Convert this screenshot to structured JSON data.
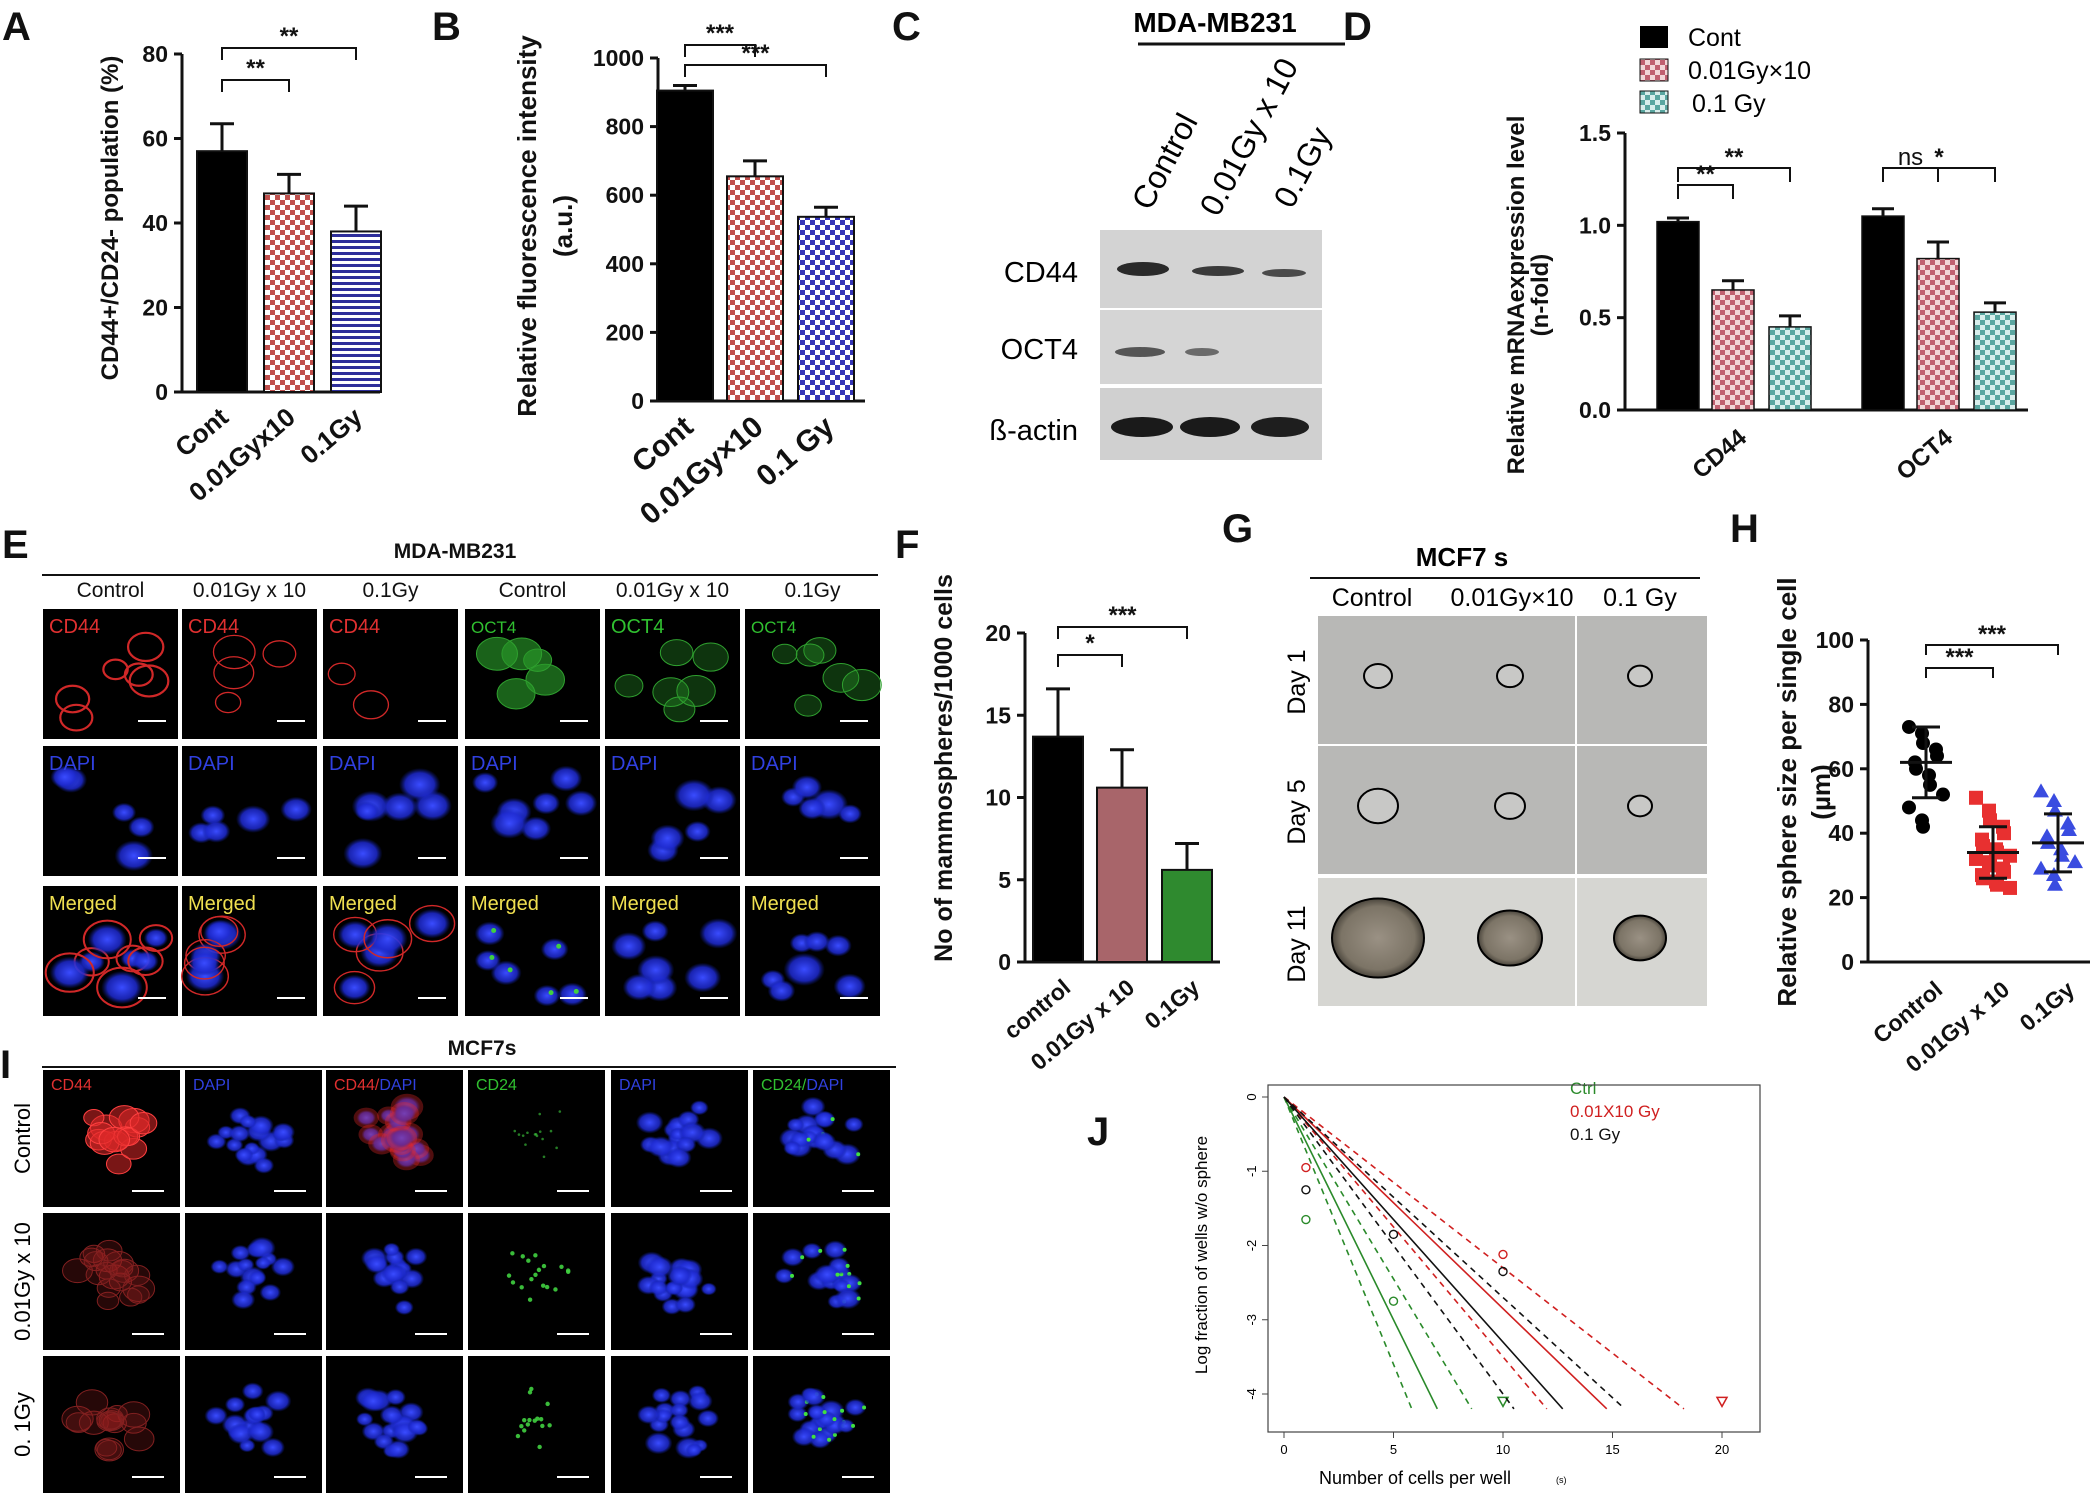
{
  "colors": {
    "black": "#000000",
    "red_check": "#c85a5a",
    "blue_stripe": "#3a3aa0",
    "pink_bar": "#a8656a",
    "green_bar": "#2f8a2f",
    "teal_check": "#5aa6a0",
    "micro_bg": "#000000",
    "red_channel": "#e03030",
    "blue_channel": "#2030d0",
    "green_channel": "#30c030",
    "merged_label": "#f0e050",
    "plate_bg": "#b9b9b9"
  },
  "panels": {
    "A": {
      "letter": "A"
    },
    "B": {
      "letter": "B"
    },
    "C": {
      "letter": "C"
    },
    "D": {
      "letter": "D"
    },
    "E": {
      "letter": "E"
    },
    "F": {
      "letter": "F"
    },
    "G": {
      "letter": "G"
    },
    "H": {
      "letter": "H"
    },
    "I": {
      "letter": "I"
    },
    "J": {
      "letter": "J"
    }
  },
  "panel_C": {
    "title": "MDA-MB231",
    "lanes": [
      "Control",
      "0.01Gy x 10",
      "0.1Gy"
    ],
    "rows": [
      "CD44",
      "OCT4",
      "ß-actin"
    ]
  },
  "panel_E": {
    "title": "MDA-MB231",
    "columns": [
      "Control",
      "0.01Gy x 10",
      "0.1Gy",
      "Control",
      "0.01Gy x 10",
      "0.1Gy"
    ],
    "row_labels": [
      [
        "CD44",
        "CD44",
        "CD44",
        "OCT4",
        "OCT4",
        "OCT4"
      ],
      [
        "DAPI",
        "DAPI",
        "DAPI",
        "DAPI",
        "DAPI",
        "DAPI"
      ],
      [
        "Merged",
        "Merged",
        "Merged",
        "Merged",
        "Merged",
        "Merged"
      ]
    ]
  },
  "panel_G": {
    "title": "MCF7 s",
    "columns": [
      "Control",
      "0.01Gy×10",
      "0.1 Gy"
    ],
    "rows": [
      "Day 1",
      "Day 5",
      "Day 11"
    ]
  },
  "panel_I": {
    "title": "MCF7s",
    "columns": [
      "CD44",
      "DAPI",
      "CD44/DAPI",
      "CD24",
      "DAPI",
      "CD24/DAPI"
    ],
    "rows": [
      "Control",
      "0.01Gy x 10",
      "0. 1Gy"
    ]
  },
  "chart_data": [
    {
      "id": "A",
      "type": "bar",
      "categories": [
        "Cont",
        "0.01Gyx10",
        "0.1Gy"
      ],
      "values": [
        57,
        47,
        38
      ],
      "errors": [
        6.5,
        4.5,
        6
      ],
      "ylabel": "CD44+/CD24- population (%)",
      "ylim": [
        0,
        80
      ],
      "yticks": [
        "0",
        "20",
        "40",
        "60",
        "80"
      ],
      "significance": [
        "**",
        "**"
      ]
    },
    {
      "id": "B",
      "type": "bar",
      "categories": [
        "Cont",
        "0.01Gy×10",
        "0.1 Gy"
      ],
      "values": [
        905,
        655,
        537
      ],
      "errors": [
        15,
        45,
        28
      ],
      "ylabel": "Relative fluorescence intensity",
      "ylabel2": "(a.u.)",
      "ylim": [
        0,
        1000
      ],
      "yticks": [
        "0",
        "200",
        "400",
        "600",
        "800",
        "1000"
      ],
      "significance": [
        "***",
        "***"
      ]
    },
    {
      "id": "D",
      "type": "bar",
      "categories": [
        "CD44",
        "OCT4"
      ],
      "series": [
        {
          "name": "Cont",
          "values": [
            1.02,
            1.05
          ],
          "errors": [
            0.02,
            0.04
          ]
        },
        {
          "name": "0.01Gy×10",
          "values": [
            0.65,
            0.82
          ],
          "errors": [
            0.05,
            0.09
          ]
        },
        {
          "name": "0.1 Gy",
          "values": [
            0.45,
            0.53
          ],
          "errors": [
            0.06,
            0.05
          ]
        }
      ],
      "ylabel": "Relative mRNAexpression level",
      "ylabel2": "(n-fold)",
      "ylim": [
        0,
        1.5
      ],
      "yticks": [
        "0.0",
        "0.5",
        "1.0",
        "1.5"
      ],
      "significance": [
        "**",
        "**",
        "ns",
        "*"
      ],
      "legend": "top-left"
    },
    {
      "id": "F",
      "type": "bar",
      "categories": [
        "control",
        "0.01Gy x 10",
        "0.1Gy"
      ],
      "values": [
        13.7,
        10.6,
        5.6
      ],
      "errors": [
        2.9,
        2.3,
        1.6
      ],
      "ylabel": "No of mammospheres/1000 cells",
      "ylim": [
        0,
        20
      ],
      "yticks": [
        "0",
        "5",
        "10",
        "15",
        "20"
      ],
      "significance": [
        "*",
        "***"
      ]
    },
    {
      "id": "H",
      "type": "scatter",
      "categories": [
        "Control",
        "0.01Gy x 10",
        "0.1Gy"
      ],
      "means": [
        62,
        34,
        37
      ],
      "sds": [
        11,
        8,
        9
      ],
      "points": [
        [
          73,
          71,
          68,
          66,
          64,
          62,
          60,
          58,
          55,
          52,
          48,
          44,
          42
        ],
        [
          51,
          47,
          44,
          42,
          40,
          38,
          36,
          35,
          34,
          33,
          32,
          31,
          30,
          29,
          28,
          27,
          26,
          25,
          24,
          23
        ],
        [
          53,
          50,
          47,
          43,
          41,
          39,
          37,
          35,
          33,
          31,
          29,
          27,
          24
        ]
      ],
      "ylabel": "Relative sphere size per single cell",
      "ylabel2": "(µm)",
      "ylim": [
        0,
        100
      ],
      "yticks": [
        "0",
        "20",
        "40",
        "60",
        "80",
        "100"
      ],
      "significance": [
        "***",
        "***"
      ]
    },
    {
      "id": "J",
      "type": "line",
      "xlabel": "Number of cells per well",
      "xlabel_suffix": "(s)",
      "ylabel": "Log fraction of wells w/o sphere",
      "xlim": [
        0,
        20
      ],
      "ylim": [
        -4.2,
        0.2
      ],
      "xticks": [
        "0",
        "5",
        "10",
        "15",
        "20"
      ],
      "yticks": [
        "0",
        "-1",
        "-2",
        "-3",
        "-4"
      ],
      "series": [
        {
          "name": "Ctrl",
          "slope": -0.6,
          "lower_slope": -0.72,
          "upper_slope": -0.49,
          "points": [
            [
              1,
              -1.65
            ],
            [
              5,
              -2.75
            ],
            [
              10,
              -4.1
            ]
          ]
        },
        {
          "name": "0.01X10 Gy",
          "slope": -0.285,
          "lower_slope": -0.35,
          "upper_slope": -0.23,
          "points": [
            [
              1,
              -0.95
            ],
            [
              10,
              -2.12
            ],
            [
              20,
              -4.1
            ]
          ]
        },
        {
          "name": "0.1 Gy",
          "slope": -0.33,
          "lower_slope": -0.4,
          "upper_slope": -0.27,
          "points": [
            [
              1,
              -1.25
            ],
            [
              5,
              -1.85
            ],
            [
              10,
              -2.35
            ]
          ]
        }
      ],
      "series_colors": [
        "#2a8a2a",
        "#d02020",
        "#111111"
      ],
      "legend": "top-right"
    }
  ]
}
